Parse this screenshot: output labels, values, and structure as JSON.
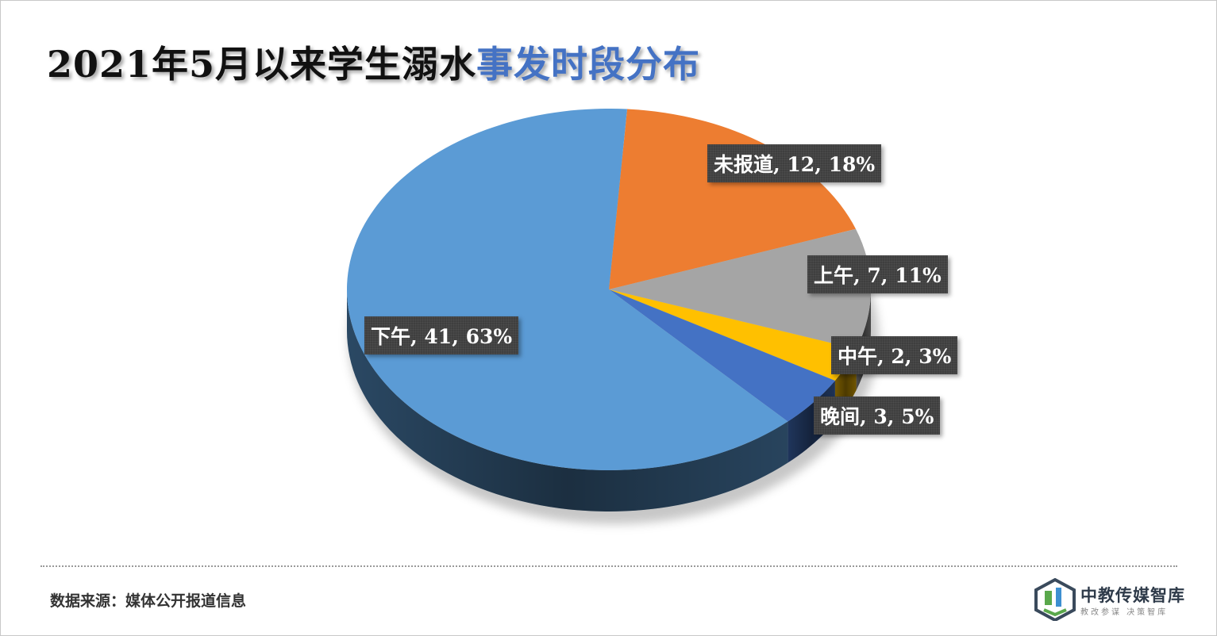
{
  "title": {
    "part_black": "2021年5月以来学生溺水",
    "part_blue": "事发时段分布"
  },
  "chart_data": {
    "type": "pie",
    "slices": [
      {
        "name": "未报道",
        "value": 12,
        "percent": "18%",
        "color": "#ed7d31"
      },
      {
        "name": "上午",
        "value": 7,
        "percent": "11%",
        "color": "#a5a5a5"
      },
      {
        "name": "中午",
        "value": 2,
        "percent": "3%",
        "color": "#ffc000"
      },
      {
        "name": "晚间",
        "value": 3,
        "percent": "5%",
        "color": "#4472c4"
      },
      {
        "name": "下午",
        "value": 41,
        "percent": "63%",
        "color": "#5b9bd5"
      }
    ],
    "labels": [
      "未报道, 12, 18%",
      "上午, 7, 11%",
      "中午, 2, 3%",
      "晚间, 3, 5%",
      "下午, 41, 63%"
    ],
    "style": "3d"
  },
  "footer": {
    "source": "数据来源：媒体公开报道信息"
  },
  "logo": {
    "name": "中教传媒智库",
    "slogan": "教改参谋  决策智库",
    "colors": [
      "#3a4a5c",
      "#5aa84b",
      "#3d8fd1"
    ]
  }
}
